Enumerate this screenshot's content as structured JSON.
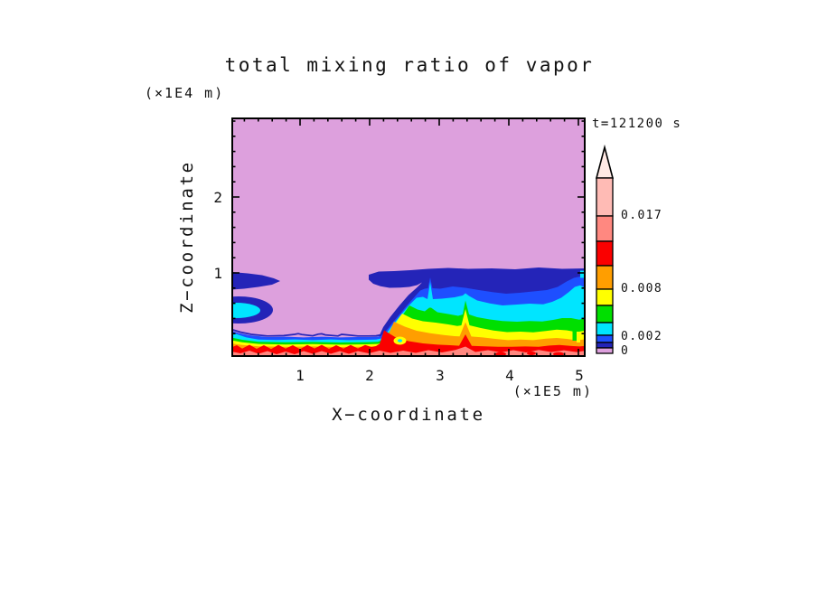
{
  "title": "total mixing ratio of vapor",
  "time_label": "t=121200 s",
  "axes": {
    "x": {
      "label": "X−coordinate",
      "units": "(×1E5 m)",
      "ticks": [
        "1",
        "2",
        "3",
        "4",
        "5"
      ]
    },
    "z": {
      "label": "Z−coordinate",
      "units": "(×1E4 m)",
      "ticks": [
        "1",
        "2"
      ]
    }
  },
  "colorbar": {
    "labels": [
      "0.017",
      "0.008",
      "0.002",
      "0"
    ]
  },
  "palette": {
    "plum": "#DDA0DD",
    "navy": "#2424B8",
    "blue": "#1E4FFF",
    "cyan": "#00E5FF",
    "green": "#00DF00",
    "yellow": "#FFFF00",
    "orange": "#FF9E00",
    "red": "#FA0000",
    "salmon": "#FF8880",
    "lightpink": "#FFBBB5",
    "arrow": "#FFE9E4",
    "frame": "#000000"
  },
  "chart_data": {
    "type": "filled_contour",
    "title": "total mixing ratio of vapor",
    "time": "t=121200 s",
    "x_axis": {
      "label": "X−coordinate",
      "units": "×1E5 m",
      "tick_values": [
        1,
        2,
        3,
        4,
        5
      ],
      "minor_tick_step": 0.2,
      "range_approx": [
        0,
        5.1
      ]
    },
    "z_axis": {
      "label": "Z−coordinate",
      "units": "×1E4 m",
      "tick_values": [
        1,
        2
      ],
      "minor_tick_step": 0.2,
      "range_approx": [
        0,
        3.1
      ]
    },
    "colorbar": {
      "orientation": "vertical",
      "overflow_arrow_on_top": true,
      "labeled_levels": [
        0,
        0.002,
        0.008,
        0.017
      ],
      "segments_bottom_to_top": [
        {
          "name": "plum",
          "color": "#DDA0DD",
          "level_range_approx": [
            0,
            0.0007
          ]
        },
        {
          "name": "navy",
          "color": "#2424B8",
          "level_range_approx": [
            0.0007,
            0.0013
          ]
        },
        {
          "name": "blue",
          "color": "#1E4FFF",
          "level_range_approx": [
            0.0013,
            0.002
          ]
        },
        {
          "name": "cyan",
          "color": "#00E5FF",
          "level_range_approx": [
            0.002,
            0.004
          ]
        },
        {
          "name": "green",
          "color": "#00DF00",
          "level_range_approx": [
            0.004,
            0.006
          ]
        },
        {
          "name": "yellow",
          "color": "#FFFF00",
          "level_range_approx": [
            0.006,
            0.008
          ]
        },
        {
          "name": "orange",
          "color": "#FF9E00",
          "level_range_approx": [
            0.008,
            0.011
          ]
        },
        {
          "name": "red",
          "color": "#FA0000",
          "level_range_approx": [
            0.011,
            0.014
          ]
        },
        {
          "name": "salmon",
          "color": "#FF8880",
          "level_range_approx": [
            0.014,
            0.017
          ]
        },
        {
          "name": "light-pink",
          "color": "#FFBBB5",
          "level_range_approx": [
            0.017,
            0.022
          ]
        },
        {
          "name": "over-range-arrow",
          "color": "#FFE9E4",
          "level_range_approx": [
            0.022,
            null
          ]
        }
      ]
    },
    "field_features_estimated": [
      "lowest-value plum region fills the whole domain above z≈1.05×1E4 m",
      "navy band (second contour level) along z≈0.95–1.1 from x≈0–0.73 and from x≈2.0 to right edge; plum gap in band for x≈0.73–2.0",
      "deep layered moist structure (navy→blue→cyan→green→yellow→orange→red→salmon with depth) occupies x≳2.8 below z≈1, with sloping front from (2.1, 0.25) up to (2.8, 1.0)",
      "plum (dry) tongue reaches down to the shallow surface layer between x≈0.73 and x≈2.1",
      "thin surface moist band (cyan/green/yellow/orange/red over salmon) ≈0.25×1E4 m deep across the full width, bumpy red/salmon texture at the ground",
      "cyan pocket ringed by navy attached to left edge, center ≈ (0.2, 0.51), half-width ≈0.45×1E5 m",
      "narrow upward plume piercing the navy band at x≈2.87",
      "narrow upward plume in the layered region at x≈3.38",
      "small yellow anomaly with cyan core at ≈ (2.43, 0.21) embedded in red/orange surface layer",
      "blue/cyan streaks rise high along the right edge near x≈5.0"
    ]
  }
}
